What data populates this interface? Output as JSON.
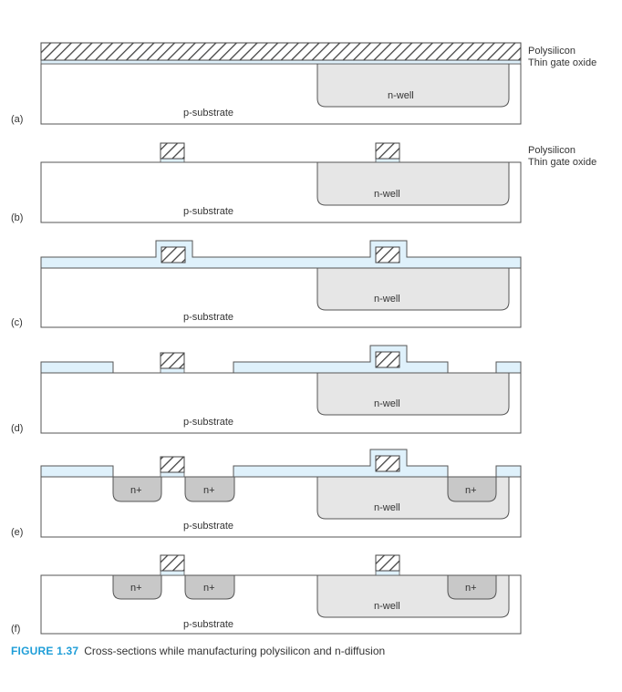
{
  "labels": {
    "p_substrate": "p-substrate",
    "n_well": "n-well",
    "n_plus": "n+",
    "polysilicon": "Polysilicon",
    "thin_gate_oxide": "Thin gate oxide"
  },
  "panels": [
    {
      "id": "a",
      "label": "(a)"
    },
    {
      "id": "b",
      "label": "(b)"
    },
    {
      "id": "c",
      "label": "(c)"
    },
    {
      "id": "d",
      "label": "(d)"
    },
    {
      "id": "e",
      "label": "(e)"
    },
    {
      "id": "f",
      "label": "(f)"
    }
  ],
  "caption": {
    "number": "FIGURE 1.37",
    "text": "Cross-sections while manufacturing polysilicon and n-diffusion"
  },
  "colors": {
    "outline": "#555555",
    "oxide": "#dff1fb",
    "n_well": "#e6e6e6",
    "n_plus": "#c8c8c8",
    "text": "#333333"
  }
}
